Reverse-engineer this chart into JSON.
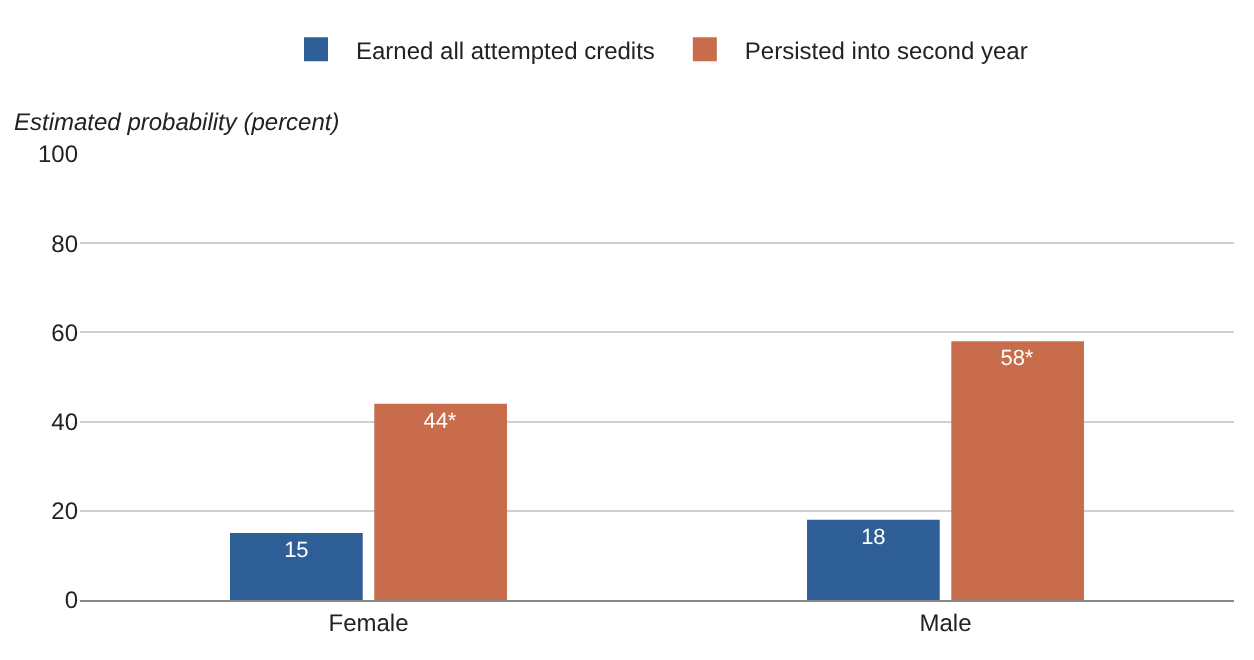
{
  "chart_data": {
    "type": "bar",
    "ylabel": "Estimated probability (percent)",
    "categories": [
      "Female",
      "Male"
    ],
    "series": [
      {
        "name": "Earned all attempted credits",
        "color": "#2e5e96",
        "values": [
          15,
          18
        ],
        "value_labels": [
          "15",
          "18"
        ]
      },
      {
        "name": "Persisted into second year",
        "color": "#c96c4b",
        "values": [
          44,
          58
        ],
        "value_labels": [
          "44*",
          "58*"
        ]
      }
    ],
    "ylim": [
      0,
      100
    ],
    "yticks": [
      0,
      20,
      40,
      60,
      80,
      100
    ],
    "grid": "y",
    "legend": "top"
  }
}
